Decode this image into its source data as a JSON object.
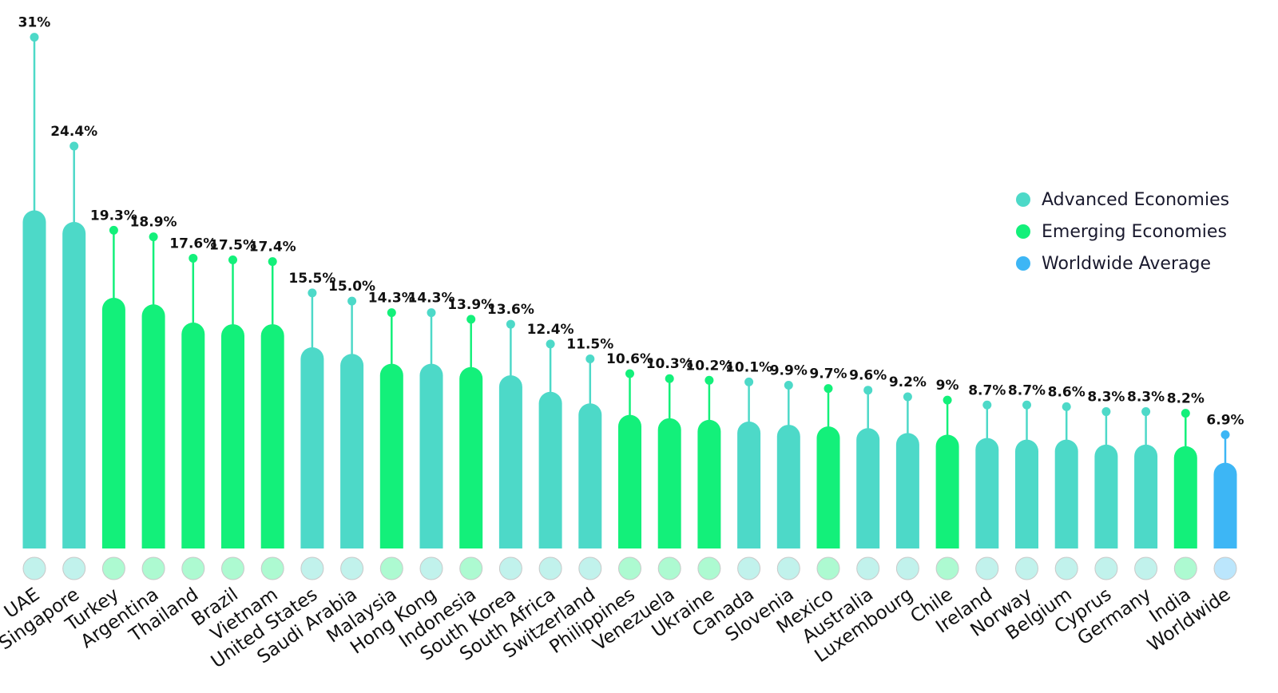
{
  "chart_data": {
    "type": "bar",
    "categories": [
      "UAE",
      "Singapore",
      "Turkey",
      "Argentina",
      "Thailand",
      "Brazil",
      "Vietnam",
      "United States",
      "Saudi Arabia",
      "Malaysia",
      "Hong Kong",
      "Indonesia",
      "South Korea",
      "South Africa",
      "Switzerland",
      "Philippines",
      "Venezuela",
      "Ukraine",
      "Canada",
      "Slovenia",
      "Mexico",
      "Australia",
      "Luxembourg",
      "Chile",
      "Ireland",
      "Norway",
      "Belgium",
      "Cyprus",
      "Germany",
      "India",
      "Worldwide"
    ],
    "labels": [
      "31%",
      "24.4%",
      "19.3%",
      "18.9%",
      "17.6%",
      "17.5%",
      "17.4%",
      "15.5%",
      "15.0%",
      "14.3%",
      "14.3%",
      "13.9%",
      "13.6%",
      "12.4%",
      "11.5%",
      "10.6%",
      "10.3%",
      "10.2%",
      "10.1%",
      "9.9%",
      "9.7%",
      "9.6%",
      "9.2%",
      "9%",
      "8.7%",
      "8.7%",
      "8.6%",
      "8.3%",
      "8.3%",
      "8.2%",
      "6.9%"
    ],
    "values": [
      31,
      24.4,
      19.3,
      18.9,
      17.6,
      17.5,
      17.4,
      15.5,
      15.0,
      14.3,
      14.3,
      13.9,
      13.6,
      12.4,
      11.5,
      10.6,
      10.3,
      10.2,
      10.1,
      9.9,
      9.7,
      9.6,
      9.2,
      9,
      8.7,
      8.7,
      8.6,
      8.3,
      8.3,
      8.2,
      6.9
    ],
    "bar_values": [
      20.5,
      19.8,
      15.2,
      14.8,
      13.7,
      13.6,
      13.6,
      12.2,
      11.8,
      11.2,
      11.2,
      11.0,
      10.5,
      9.5,
      8.8,
      8.1,
      7.9,
      7.8,
      7.7,
      7.5,
      7.4,
      7.3,
      7.0,
      6.9,
      6.7,
      6.6,
      6.6,
      6.3,
      6.3,
      6.2,
      5.2
    ],
    "groups": [
      "advanced",
      "advanced",
      "emerging",
      "emerging",
      "emerging",
      "emerging",
      "emerging",
      "advanced",
      "advanced",
      "emerging",
      "advanced",
      "emerging",
      "advanced",
      "advanced",
      "advanced",
      "emerging",
      "emerging",
      "emerging",
      "advanced",
      "advanced",
      "emerging",
      "advanced",
      "advanced",
      "emerging",
      "advanced",
      "advanced",
      "advanced",
      "advanced",
      "advanced",
      "emerging",
      "worldwide"
    ],
    "flag_icons": [
      "flag-uae-icon",
      "flag-singapore-icon",
      "flag-turkey-icon",
      "flag-argentina-icon",
      "flag-thailand-icon",
      "flag-brazil-icon",
      "flag-vietnam-icon",
      "flag-united-states-icon",
      "flag-saudi-arabia-icon",
      "flag-malaysia-icon",
      "flag-hong-kong-icon",
      "flag-indonesia-icon",
      "flag-south-korea-icon",
      "flag-south-africa-icon",
      "flag-switzerland-icon",
      "flag-philippines-icon",
      "flag-venezuela-icon",
      "flag-ukraine-icon",
      "flag-canada-icon",
      "flag-slovenia-icon",
      "flag-mexico-icon",
      "flag-australia-icon",
      "flag-luxembourg-icon",
      "flag-chile-icon",
      "flag-ireland-icon",
      "flag-norway-icon",
      "flag-belgium-icon",
      "flag-cyprus-icon",
      "flag-germany-icon",
      "flag-india-icon",
      "globe-icon"
    ],
    "ylim": [
      0,
      32
    ],
    "legend_position": "right",
    "grid": false
  },
  "legend": {
    "items": [
      {
        "label": "Advanced Economies",
        "color": "#4dd9c8"
      },
      {
        "label": "Emerging Economies",
        "color": "#13f07a"
      },
      {
        "label": "Worldwide Average",
        "color": "#3db6f5"
      }
    ]
  },
  "colors": {
    "advanced": "#4dd9c8",
    "emerging": "#13f07a",
    "worldwide": "#3db6f5"
  }
}
